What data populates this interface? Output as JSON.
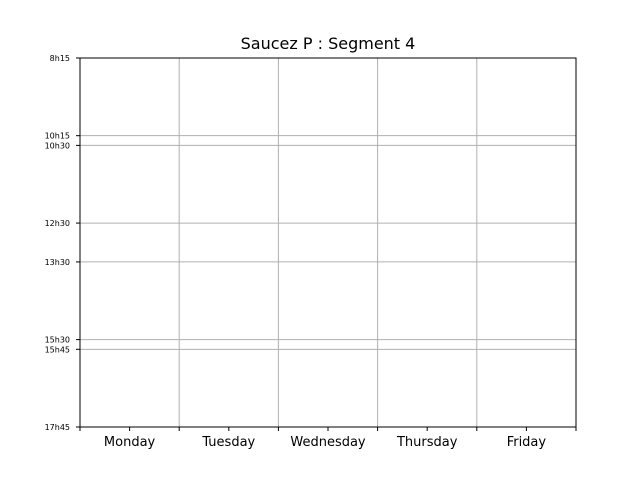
{
  "chart_data": {
    "type": "table",
    "title": "Saucez P : Segment 4",
    "xlabel": "",
    "ylabel": "",
    "categories": [
      "Monday",
      "Tuesday",
      "Wednesday",
      "Thursday",
      "Friday"
    ],
    "y_ticks": [
      {
        "label": "8h15",
        "minutes": 495
      },
      {
        "label": "10h15",
        "minutes": 615
      },
      {
        "label": "10h30",
        "minutes": 630
      },
      {
        "label": "12h30",
        "minutes": 750
      },
      {
        "label": "13h30",
        "minutes": 810
      },
      {
        "label": "15h30",
        "minutes": 930
      },
      {
        "label": "15h45",
        "minutes": 945
      },
      {
        "label": "17h45",
        "minutes": 1065
      }
    ],
    "ylim": [
      "8h15",
      "17h45"
    ],
    "y_inverted": true,
    "grid": true,
    "events": [],
    "colors": {
      "grid": "#b0b0b0",
      "axis": "#000000",
      "background": "#ffffff"
    }
  }
}
